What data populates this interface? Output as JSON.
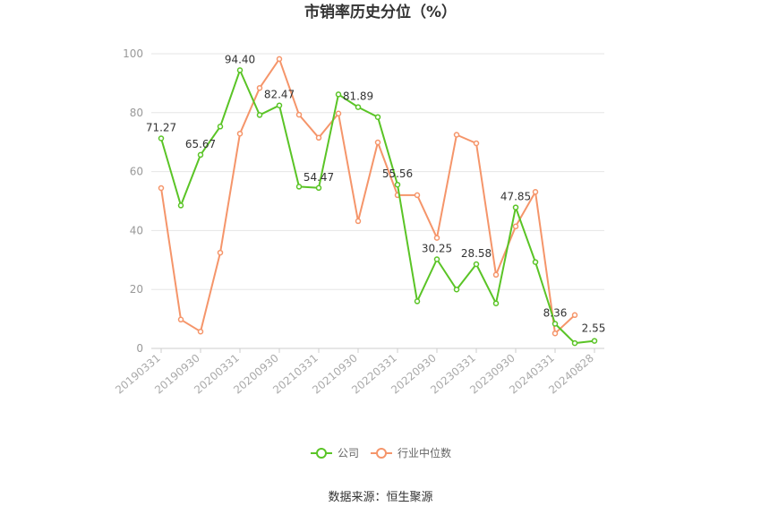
{
  "chart_data": {
    "type": "line",
    "title": "市销率历史分位（%）",
    "xlabel": "",
    "ylabel": "",
    "ylim": [
      0,
      100
    ],
    "yticks": [
      0,
      20,
      40,
      60,
      80,
      100
    ],
    "grid": true,
    "x": [
      "20190331",
      "20190630",
      "20190930",
      "20191231",
      "20200331",
      "20200630",
      "20200930",
      "20201231",
      "20210331",
      "20210630",
      "20210930",
      "20211231",
      "20220331",
      "20220630",
      "20220930",
      "20221231",
      "20230331",
      "20230630",
      "20230930",
      "20231231",
      "20240331",
      "20240630",
      "20240828"
    ],
    "xtick_labels": [
      "20190331",
      "20190930",
      "20200331",
      "20200930",
      "20210331",
      "20210930",
      "20220331",
      "20220930",
      "20230331",
      "20230930",
      "20240331",
      "20240828"
    ],
    "series": [
      {
        "name": "公司",
        "color": "#5ac426",
        "values": [
          71.27,
          48.5,
          65.67,
          75.3,
          94.4,
          79.2,
          82.47,
          54.9,
          54.47,
          86.2,
          81.89,
          78.5,
          55.56,
          16.0,
          30.25,
          20.0,
          28.58,
          15.3,
          47.85,
          29.3,
          8.36,
          1.8,
          2.55
        ],
        "labels": {
          "0": "71.27",
          "2": "65.67",
          "4": "94.40",
          "6": "82.47",
          "8": "54.47",
          "10": "81.89",
          "12": "55.56",
          "14": "30.25",
          "16": "28.58",
          "18": "47.85",
          "20": "8.36",
          "22": "2.55"
        }
      },
      {
        "name": "行业中位数",
        "color": "#f5956a",
        "values": [
          54.4,
          9.8,
          5.7,
          32.5,
          72.9,
          88.4,
          98.2,
          79.3,
          71.5,
          79.7,
          43.2,
          69.9,
          52.0,
          52.0,
          37.5,
          72.5,
          69.6,
          25.0,
          41.4,
          53.1,
          5.1,
          11.3,
          null
        ]
      }
    ],
    "legend_position": "bottom",
    "source": "数据来源：恒生聚源"
  }
}
